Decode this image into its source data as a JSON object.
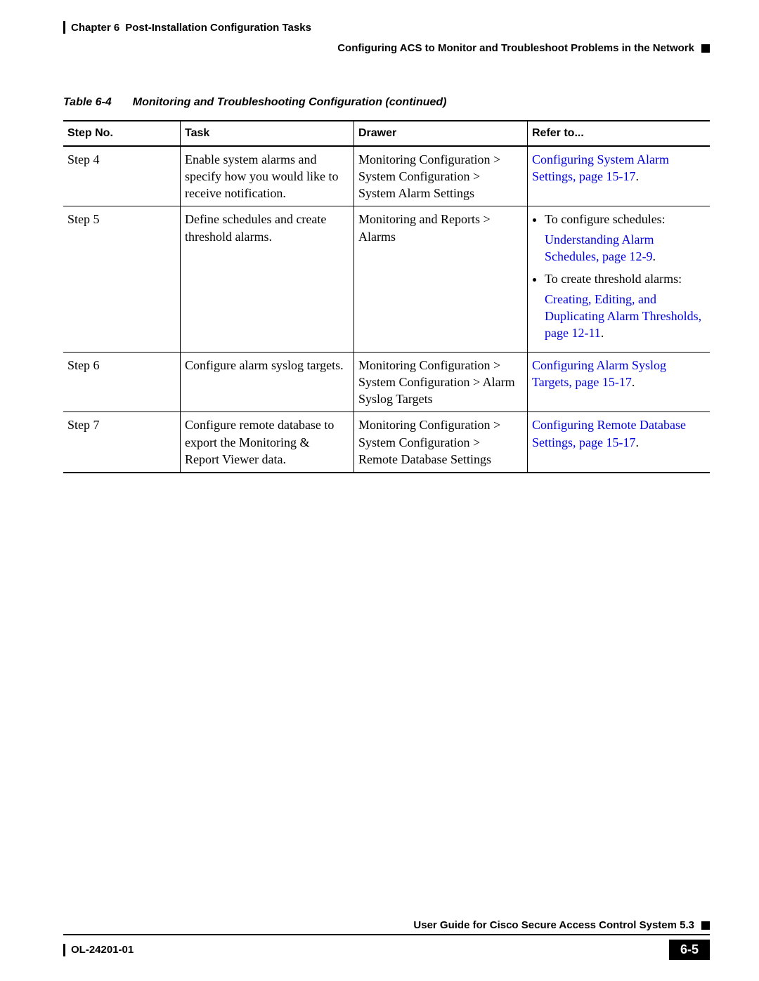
{
  "header": {
    "chapter_label": "Chapter 6",
    "chapter_title": "Post-Installation Configuration Tasks",
    "section_title": "Configuring ACS to Monitor and Troubleshoot Problems in the Network"
  },
  "caption": {
    "label": "Table 6-4",
    "title": "Monitoring and Troubleshooting Configuration (continued)"
  },
  "columns": [
    "Step No.",
    "Task",
    "Drawer",
    "Refer to..."
  ],
  "rows": [
    {
      "step": "Step 4",
      "task": "Enable system alarms and specify how you would like to receive notification.",
      "drawer": "Monitoring Configuration > System Configuration > System Alarm Settings",
      "refer_link": "Configuring System Alarm Settings, page 15-17",
      "refer_suffix": "."
    },
    {
      "step": "Step 5",
      "task": "Define schedules and create threshold alarms.",
      "drawer": "Monitoring and Reports > Alarms",
      "bullets": [
        {
          "label": "To configure schedules:",
          "link": "Understanding Alarm Schedules, page 12-9",
          "suffix": "."
        },
        {
          "label": "To create threshold alarms:",
          "link": "Creating, Editing, and Duplicating Alarm Thresholds, page 12-11",
          "suffix": "."
        }
      ]
    },
    {
      "step": "Step 6",
      "task": "Configure alarm syslog targets.",
      "drawer": "Monitoring Configuration > System Configuration > Alarm Syslog Targets",
      "refer_link": "Configuring Alarm Syslog Targets, page 15-17",
      "refer_suffix": "."
    },
    {
      "step": "Step 7",
      "task": "Configure remote database to export the Monitoring & Report Viewer data.",
      "drawer": "Monitoring Configuration > System Configuration > Remote Database Settings",
      "refer_link": "Configuring Remote Database Settings, page 15-17",
      "refer_suffix": "."
    }
  ],
  "footer": {
    "guide_title": "User Guide for Cisco Secure Access Control System 5.3",
    "doc_number": "OL-24201-01",
    "page_number": "6-5"
  }
}
